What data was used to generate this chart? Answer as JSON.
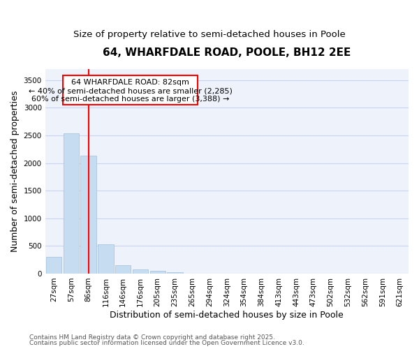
{
  "title_line1": "64, WHARFDALE ROAD, POOLE, BH12 2EE",
  "title_line2": "Size of property relative to semi-detached houses in Poole",
  "xlabel": "Distribution of semi-detached houses by size in Poole",
  "ylabel": "Number of semi-detached properties",
  "categories": [
    "27sqm",
    "57sqm",
    "86sqm",
    "116sqm",
    "146sqm",
    "176sqm",
    "205sqm",
    "235sqm",
    "265sqm",
    "294sqm",
    "324sqm",
    "354sqm",
    "384sqm",
    "413sqm",
    "443sqm",
    "473sqm",
    "502sqm",
    "532sqm",
    "562sqm",
    "591sqm",
    "621sqm"
  ],
  "values": [
    300,
    2540,
    2130,
    530,
    155,
    80,
    55,
    30,
    5,
    0,
    0,
    0,
    0,
    0,
    0,
    0,
    0,
    0,
    0,
    0,
    0
  ],
  "bar_color": "#c6dcf0",
  "bar_edgecolor": "#a0c0dc",
  "vline_x_index": 2,
  "vline_color": "red",
  "ann_line1": "64 WHARFDALE ROAD: 82sqm",
  "ann_line2": "← 40% of semi-detached houses are smaller (2,285)",
  "ann_line3": "60% of semi-detached houses are larger (3,388) →",
  "ylim_max": 3700,
  "yticks": [
    0,
    500,
    1000,
    1500,
    2000,
    2500,
    3000,
    3500
  ],
  "footer_line1": "Contains HM Land Registry data © Crown copyright and database right 2025.",
  "footer_line2": "Contains public sector information licensed under the Open Government Licence v3.0.",
  "bg_color": "#ffffff",
  "plot_bg_color": "#eef2fb",
  "grid_color": "#c8d4f0",
  "title_fontsize": 11,
  "subtitle_fontsize": 9.5,
  "axis_label_fontsize": 9,
  "tick_fontsize": 7.5,
  "ann_fontsize": 8,
  "footer_fontsize": 6.5
}
